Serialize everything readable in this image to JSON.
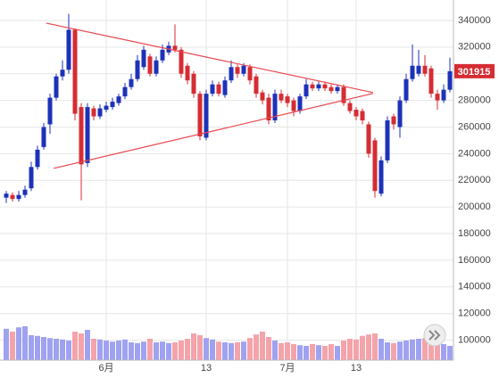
{
  "chart_data": {
    "type": "candlestick",
    "categories": [
      null,
      null,
      null,
      null,
      null,
      null,
      null,
      null,
      null,
      null,
      null,
      null,
      null,
      null,
      null,
      null,
      "6月",
      null,
      null,
      null,
      null,
      null,
      null,
      null,
      null,
      null,
      null,
      null,
      null,
      null,
      null,
      null,
      "13",
      null,
      null,
      null,
      null,
      null,
      null,
      null,
      null,
      null,
      null,
      null,
      null,
      "7月",
      null,
      null,
      null,
      null,
      null,
      null,
      null,
      null,
      null,
      null,
      "13",
      null,
      null,
      null,
      null,
      null,
      null,
      null,
      null,
      null,
      null,
      null,
      null,
      null,
      null,
      null
    ],
    "open": [
      207000,
      209000,
      206000,
      209000,
      214000,
      230000,
      245000,
      262000,
      282000,
      298000,
      303000,
      333000,
      275000,
      233000,
      274000,
      268000,
      273000,
      275000,
      278000,
      283000,
      290000,
      296000,
      305000,
      313000,
      300000,
      310000,
      316000,
      321000,
      318000,
      306000,
      300000,
      285000,
      252000,
      285000,
      292000,
      284000,
      295000,
      305000,
      300000,
      305000,
      298000,
      286000,
      282000,
      265000,
      285000,
      283000,
      280000,
      272000,
      283000,
      292000,
      289000,
      292000,
      290000,
      287000,
      290000,
      278000,
      273000,
      272000,
      262000,
      250000,
      210000,
      235000,
      268000,
      260000,
      280000,
      296000,
      300000,
      306000,
      304000,
      285000,
      280000,
      288000
    ],
    "high": [
      212000,
      211000,
      212000,
      216000,
      234000,
      246000,
      263000,
      285000,
      300000,
      310000,
      345000,
      334000,
      278000,
      278000,
      276000,
      277000,
      279000,
      282000,
      285000,
      293000,
      300000,
      314000,
      321000,
      315000,
      313000,
      322000,
      324000,
      337000,
      320000,
      308000,
      302000,
      287000,
      288000,
      295000,
      294000,
      298000,
      310000,
      307000,
      308000,
      307000,
      300000,
      288000,
      285000,
      288000,
      288000,
      285000,
      282000,
      285000,
      296000,
      294000,
      294000,
      294000,
      292000,
      292000,
      292000,
      280000,
      275000,
      274000,
      264000,
      252000,
      238000,
      268000,
      270000,
      283000,
      300000,
      322000,
      318000,
      314000,
      306000,
      288000,
      292000,
      312000
    ],
    "low": [
      203000,
      204000,
      204000,
      207000,
      212000,
      228000,
      243000,
      255000,
      280000,
      295000,
      300000,
      265000,
      205000,
      230000,
      265000,
      266000,
      271000,
      273000,
      276000,
      281000,
      288000,
      294000,
      303000,
      298000,
      298000,
      308000,
      314000,
      316000,
      297000,
      292000,
      282000,
      250000,
      250000,
      283000,
      283000,
      282000,
      293000,
      297000,
      298000,
      292000,
      282000,
      277000,
      262000,
      263000,
      278000,
      275000,
      268000,
      270000,
      281000,
      287000,
      287000,
      287000,
      285000,
      285000,
      276000,
      270000,
      265000,
      262000,
      237000,
      207000,
      208000,
      233000,
      258000,
      252000,
      278000,
      294000,
      298000,
      298000,
      282000,
      273000,
      278000,
      286000
    ],
    "close": [
      210000,
      206000,
      209000,
      213000,
      230000,
      243000,
      260000,
      282000,
      298000,
      303000,
      333000,
      270000,
      232000,
      275000,
      268000,
      274000,
      276000,
      279000,
      283000,
      290000,
      296000,
      310000,
      318000,
      300000,
      310000,
      318000,
      321000,
      318000,
      300000,
      295000,
      285000,
      253000,
      285000,
      292000,
      285000,
      295000,
      305000,
      300000,
      306000,
      295000,
      285000,
      280000,
      265000,
      285000,
      280000,
      278000,
      272000,
      283000,
      292000,
      289000,
      292000,
      289000,
      287000,
      290000,
      278000,
      272000,
      268000,
      265000,
      240000,
      212000,
      235000,
      265000,
      262000,
      280000,
      296000,
      306000,
      306000,
      300000,
      285000,
      280000,
      288000,
      301915
    ],
    "volume": [
      88,
      80,
      92,
      95,
      70,
      68,
      65,
      62,
      60,
      58,
      55,
      80,
      75,
      85,
      60,
      58,
      55,
      52,
      55,
      58,
      50,
      48,
      52,
      60,
      50,
      52,
      48,
      50,
      55,
      60,
      75,
      70,
      62,
      58,
      52,
      50,
      48,
      50,
      52,
      62,
      72,
      80,
      65,
      55,
      48,
      50,
      45,
      42,
      40,
      45,
      42,
      40,
      45,
      40,
      55,
      60,
      58,
      68,
      72,
      75,
      60,
      50,
      48,
      52,
      55,
      58,
      60,
      62,
      55,
      50,
      45,
      40
    ],
    "vlim": [
      0,
      100
    ],
    "ylim": [
      85000,
      350000
    ],
    "yticks": [
      100000,
      120000,
      140000,
      160000,
      180000,
      200000,
      220000,
      240000,
      260000,
      280000,
      300000,
      320000,
      340000
    ],
    "grid": true,
    "up_color": "#1d32b8",
    "down_color": "#d62c33",
    "up_volume_color": "#9fa2f0",
    "down_volume_color": "#f5a3aa",
    "trendlines": [
      {
        "x": [
          6.4,
          58.7
        ],
        "y": [
          338000,
          285900
        ],
        "color": "#e8474f"
      },
      {
        "x": [
          7.6,
          58.7
        ],
        "y": [
          229000,
          285200
        ],
        "color": "#e8474f"
      }
    ]
  }
}
